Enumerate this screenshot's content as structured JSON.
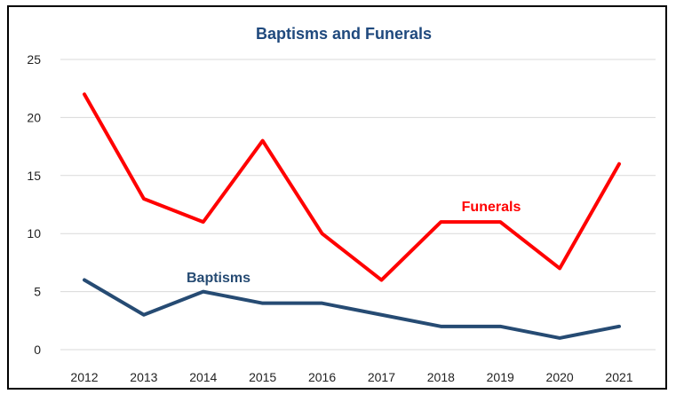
{
  "chart_data": {
    "type": "line",
    "title": "Baptisms and Funerals",
    "xlabel": "",
    "ylabel": "",
    "x": [
      "2012",
      "2013",
      "2014",
      "2015",
      "2016",
      "2017",
      "2018",
      "2019",
      "2020",
      "2021"
    ],
    "ylim": [
      0,
      25
    ],
    "yticks": [
      0,
      5,
      10,
      15,
      20,
      25
    ],
    "grid": true,
    "legend": "none (series labeled inline)",
    "series": [
      {
        "name": "Funerals",
        "color": "#ff0000",
        "values": [
          22,
          13,
          11,
          18,
          10,
          6,
          11,
          11,
          7,
          16
        ]
      },
      {
        "name": "Baptisms",
        "color": "#264b73",
        "values": [
          6,
          3,
          5,
          4,
          4,
          3,
          2,
          2,
          1,
          2
        ]
      }
    ]
  },
  "colors": {
    "title": "#1f497d",
    "frame": "#000000",
    "grid": "#d9d9d9"
  }
}
